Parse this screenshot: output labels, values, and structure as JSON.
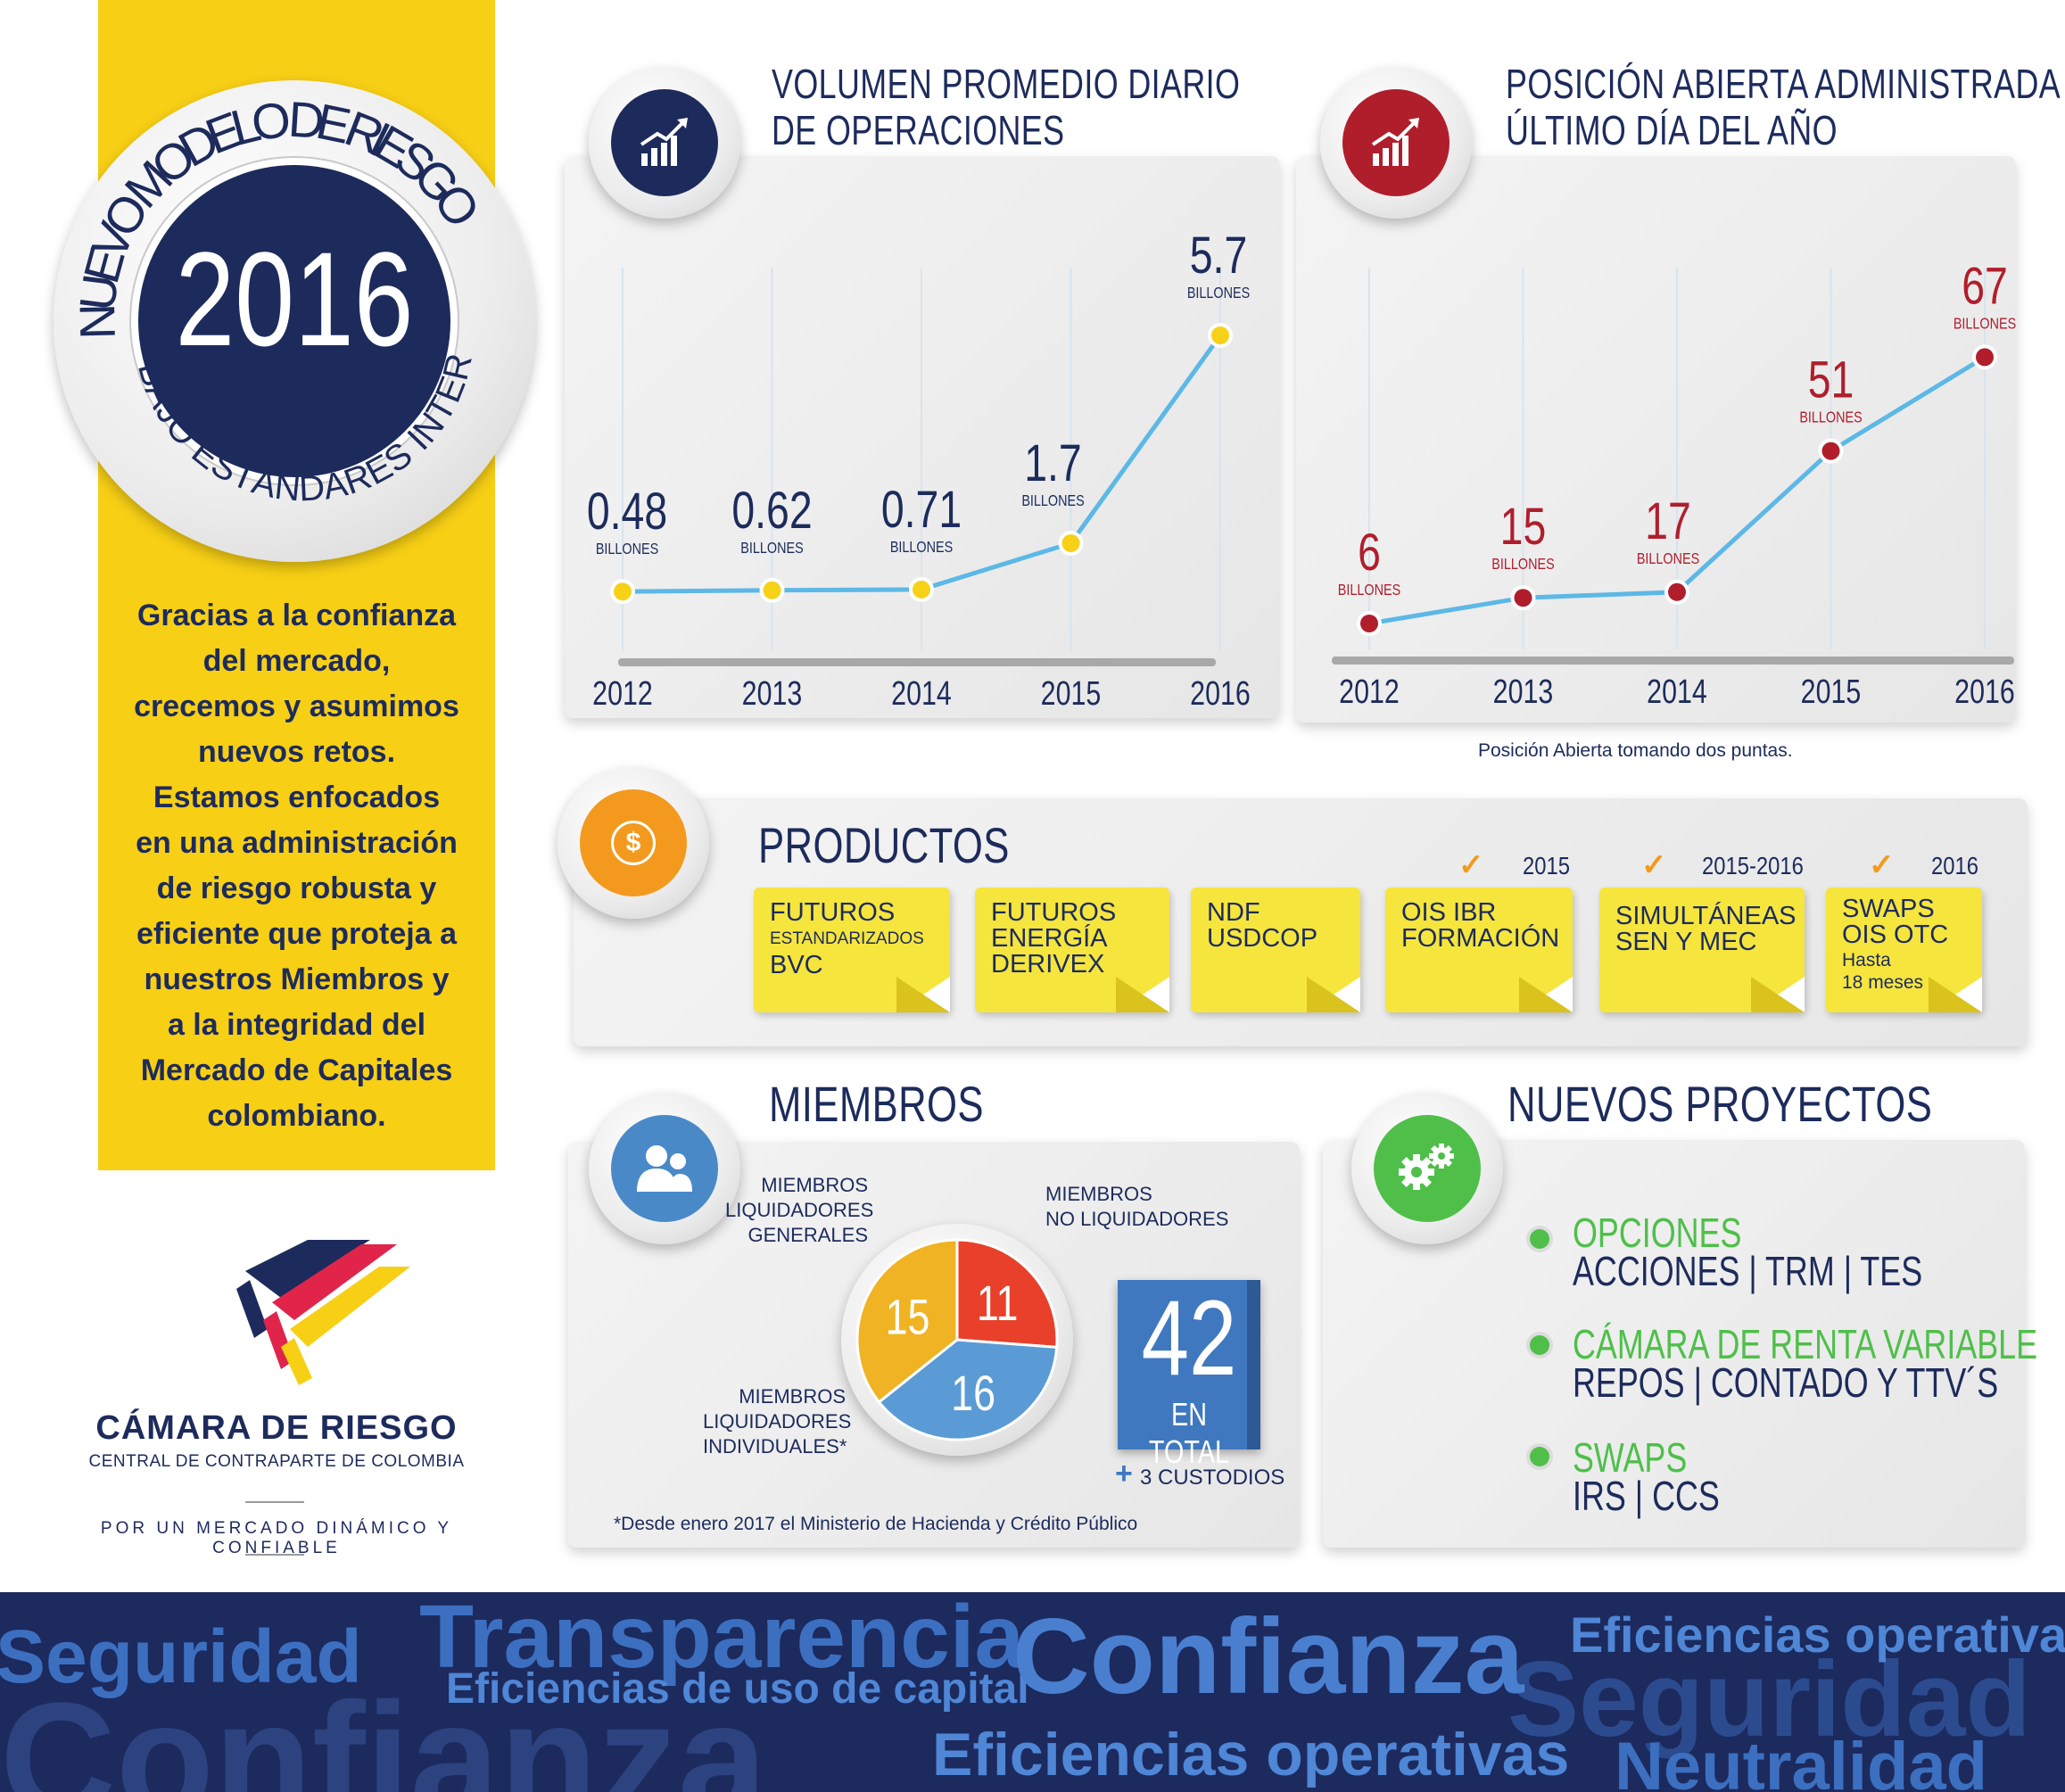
{
  "left_panel": {
    "seal_top": "NUEVO MODELO DE RIESGO",
    "seal_year": "2016",
    "seal_bottom": "BAJO ESTÁNDARES INTERNACIONALES",
    "message_lines": [
      "Gracias a la confianza",
      "del mercado,",
      "crecemos y asumimos",
      "nuevos retos.",
      "Estamos enfocados",
      "en una administración",
      "de riesgo robusta y",
      "eficiente que proteja a",
      "nuestros Miembros y",
      "a la integridad del",
      "Mercado de Capitales",
      "colombiano."
    ],
    "logo_name": "CÁMARA DE RIESGO",
    "logo_sub": "CENTRAL DE CONTRAPARTE DE COLOMBIA",
    "slogan": "POR UN MERCADO DINÁMICO Y CONFIABLE"
  },
  "chart_data": [
    {
      "type": "line",
      "title": "VOLUMEN PROMEDIO DIARIO DE OPERACIONES",
      "title_lines": [
        "VOLUMEN PROMEDIO DIARIO",
        "DE OPERACIONES"
      ],
      "x": [
        "2012",
        "2013",
        "2014",
        "2015",
        "2016"
      ],
      "values": [
        0.48,
        0.62,
        0.71,
        1.7,
        5.7
      ],
      "value_labels": [
        "0.48",
        "0.62",
        "0.71",
        "1.7",
        "5.7"
      ],
      "unit_label": "BILLONES",
      "line_color": "#5cb8e6",
      "point_color": "#f7d117",
      "value_color": "#1d2b5c",
      "ylim": [
        0,
        6
      ]
    },
    {
      "type": "line",
      "title": "POSICIÓN ABIERTA ADMINISTRADA ÚLTIMO DÍA DEL AÑO",
      "title_lines": [
        "POSICIÓN ABIERTA ADMINISTRADA",
        "ÚLTIMO DÍA DEL AÑO"
      ],
      "x": [
        "2012",
        "2013",
        "2014",
        "2015",
        "2016"
      ],
      "values": [
        6,
        15,
        17,
        51,
        67
      ],
      "value_labels": [
        "6",
        "15",
        "17",
        "51",
        "67"
      ],
      "unit_label": "BILLONES",
      "line_color": "#5cb8e6",
      "point_color": "#b01e2c",
      "value_color": "#b01e2c",
      "ylim": [
        0,
        75
      ],
      "footnote": "Posición Abierta tomando dos puntas."
    }
  ],
  "productos": {
    "title": "PRODUCTOS",
    "year_tags": [
      "2015",
      "2015-2016",
      "2016"
    ],
    "items": [
      {
        "lines": [
          "FUTUROS"
        ],
        "small": "ESTANDARIZADOS",
        "tail": "BVC"
      },
      {
        "lines": [
          "FUTUROS",
          "ENERGÍA",
          "DERIVEX"
        ]
      },
      {
        "lines": [
          "NDF",
          "USDCOP"
        ]
      },
      {
        "lines": [
          "OIS IBR",
          "FORMACIÓN"
        ]
      },
      {
        "lines": [
          "SIMULTÁNEAS",
          "SEN Y MEC"
        ]
      },
      {
        "lines": [
          "SWAPS",
          "OIS OTC"
        ],
        "small": "Hasta",
        "small2": "18 meses"
      }
    ]
  },
  "miembros": {
    "title": "MIEMBROS",
    "label_generales": [
      "MIEMBROS",
      "LIQUIDADORES",
      "GENERALES"
    ],
    "label_no_liq": [
      "MIEMBROS",
      "NO LIQUIDADORES"
    ],
    "label_individuales": [
      "MIEMBROS",
      "LIQUIDADORES",
      "INDIVIDUALES*"
    ],
    "pie": [
      {
        "label": "11",
        "value": 11,
        "color": "#e8402a"
      },
      {
        "label": "16",
        "value": 16,
        "color": "#5b9bd5"
      },
      {
        "label": "15",
        "value": 15,
        "color": "#f0b323"
      }
    ],
    "total": "42",
    "total_label": "EN TOTAL",
    "custodios": "3 CUSTODIOS",
    "plus": "+",
    "footnote": "*Desde enero 2017 el Ministerio de Hacienda y Crédito Público"
  },
  "proyectos": {
    "title": "NUEVOS PROYECTOS",
    "items": [
      {
        "head": "OPCIONES",
        "sub": "ACCIONES | TRM | TES"
      },
      {
        "head": "CÁMARA DE RENTA VARIABLE",
        "sub": "REPOS | CONTADO Y TTV´S"
      },
      {
        "head": "SWAPS",
        "sub": "IRS | CCS"
      }
    ]
  },
  "footer_words": [
    "Seguridad",
    "Transparencia",
    "Eficiencias de uso de capital",
    "Confianza",
    "Eficiencias operativas",
    "Seguridad",
    "Confianza",
    "Eficiencias operativas",
    "Neutralidad"
  ]
}
